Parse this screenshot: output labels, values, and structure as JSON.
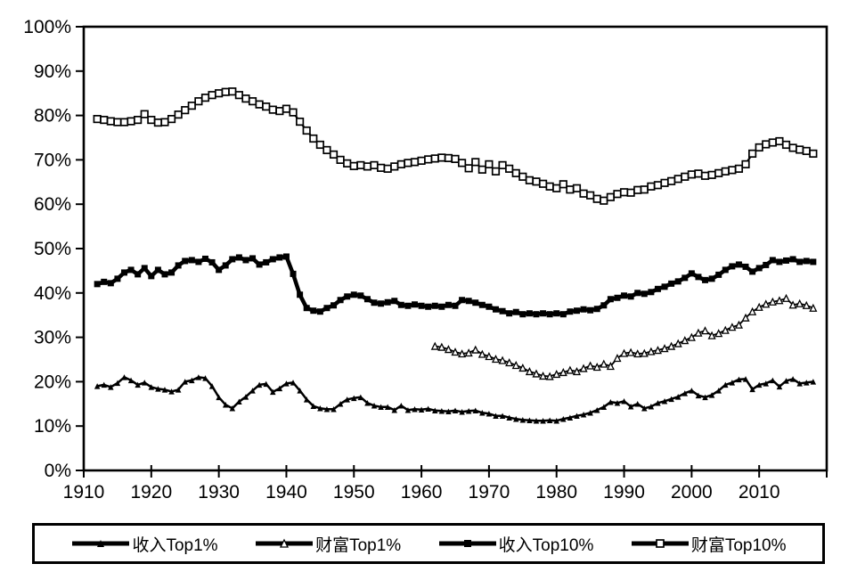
{
  "figure": {
    "background": "#ffffff",
    "line_color": "#000000"
  },
  "axes": {
    "y_tick_labels": [
      "100%",
      "90%",
      "80%",
      "70%",
      "60%",
      "50%",
      "40%",
      "30%",
      "20%",
      "10%",
      "0%"
    ],
    "y_tick_values": [
      100,
      90,
      80,
      70,
      60,
      50,
      40,
      30,
      20,
      10,
      0
    ],
    "x_tick_labels": [
      "1910",
      "1920",
      "1930",
      "1940",
      "1950",
      "1960",
      "1970",
      "1980",
      "1990",
      "2000",
      "2010"
    ],
    "x_tick_values": [
      1910,
      1920,
      1930,
      1940,
      1950,
      1960,
      1970,
      1980,
      1990,
      2000,
      2010
    ]
  },
  "legend": {
    "items": [
      "收入Top1%",
      "财富Top1%",
      "收入Top10%",
      "财富Top10%"
    ]
  },
  "chart_data": {
    "type": "line",
    "title": "",
    "xlabel": "",
    "ylabel": "",
    "xlim": [
      1910,
      2020
    ],
    "ylim": [
      0,
      100
    ],
    "grid": false,
    "legend_position": "bottom",
    "series": [
      {
        "name": "收入Top1%",
        "marker": "triangle-filled",
        "line_width": 2.5,
        "marker_size": 6.5,
        "start_year": 1912,
        "values": [
          19,
          19.3,
          18.8,
          19.7,
          21,
          20.3,
          19.3,
          19.8,
          18.8,
          18.4,
          18.2,
          17.8,
          18.2,
          20,
          20.3,
          21,
          20.8,
          19,
          16.5,
          14.8,
          14,
          15.5,
          16.6,
          18,
          19.3,
          19.5,
          17.7,
          18.5,
          19.6,
          19.8,
          18,
          16,
          14.5,
          14,
          13.8,
          13.8,
          15,
          16,
          16.3,
          16.5,
          15.2,
          14.6,
          14.3,
          14.3,
          13.6,
          14.6,
          13.6,
          13.8,
          13.7,
          13.9,
          13.5,
          13.4,
          13.3,
          13.5,
          13.2,
          13.4,
          13.5,
          13,
          12.8,
          12.3,
          12.3,
          11.9,
          11.6,
          11.4,
          11.3,
          11.2,
          11.2,
          11.3,
          11.2,
          11.6,
          11.9,
          12.3,
          12.6,
          13,
          13.6,
          14.3,
          15.4,
          15.2,
          15.6,
          14.4,
          15,
          14,
          14.4,
          15.2,
          15.6,
          16.1,
          16.6,
          17.4,
          18,
          16.9,
          16.5,
          17,
          18,
          19.3,
          19.8,
          20.5,
          20.6,
          18.3,
          19.3,
          19.6,
          20.3,
          18.9,
          20.2,
          20.6,
          19.6,
          19.8,
          20
        ]
      },
      {
        "name": "财富Top1%",
        "marker": "triangle-open",
        "line_width": 1.8,
        "marker_size": 7,
        "start_year": 1962,
        "values": [
          28,
          27.8,
          27.3,
          26.7,
          26.3,
          26.5,
          27.2,
          26.2,
          25.7,
          25.1,
          24.8,
          24.3,
          23.7,
          23.1,
          22.3,
          21.8,
          21.3,
          21.2,
          21.7,
          22.1,
          22.6,
          22.3,
          23,
          23.6,
          23.3,
          24,
          23.5,
          25.3,
          26.4,
          26.6,
          26.3,
          26.4,
          26.8,
          27.1,
          27.5,
          28,
          28.6,
          29.3,
          30,
          31,
          31.5,
          30.4,
          30.9,
          31.6,
          32.3,
          32.8,
          34.4,
          35.8,
          36.8,
          37.5,
          38,
          38.3,
          38.8,
          37.3,
          37.6,
          37.2,
          36.6
        ]
      },
      {
        "name": "收入Top10%",
        "marker": "square-filled",
        "line_width": 4.5,
        "marker_size": 7,
        "start_year": 1912,
        "values": [
          42,
          42.5,
          42.2,
          43.2,
          44.6,
          45.2,
          44.2,
          45.6,
          43.8,
          45.2,
          44.2,
          44.6,
          46.2,
          47.2,
          47.4,
          47,
          47.7,
          46.9,
          45.2,
          46.2,
          47.6,
          48,
          47.4,
          47.8,
          46.4,
          46.9,
          47.6,
          48,
          48.2,
          44.3,
          39.6,
          36.6,
          36,
          35.8,
          36.6,
          37.2,
          38.4,
          39.2,
          39.6,
          39.4,
          38.6,
          37.8,
          37.6,
          37.9,
          38.2,
          37.3,
          37.1,
          37.4,
          37.1,
          36.9,
          37.1,
          36.9,
          37.3,
          37.1,
          38.4,
          38.2,
          37.8,
          37.3,
          36.9,
          36.3,
          35.9,
          35.4,
          35.7,
          35.2,
          35.4,
          35.2,
          35.4,
          35.2,
          35.4,
          35.2,
          35.8,
          36,
          36.3,
          36.1,
          36.4,
          37.2,
          38.6,
          38.9,
          39.4,
          39.2,
          40,
          39.8,
          40.2,
          40.9,
          41.4,
          42.1,
          42.6,
          43.4,
          44.4,
          43.6,
          42.9,
          43.2,
          44.1,
          45.2,
          46,
          46.4,
          45.9,
          44.8,
          45.6,
          46.3,
          47.4,
          47,
          47.3,
          47.6,
          47,
          47.2,
          47
        ]
      },
      {
        "name": "财富Top10%",
        "marker": "square-open",
        "line_width": 2.2,
        "marker_size": 7.5,
        "start_year": 1912,
        "values": [
          79.2,
          79,
          78.7,
          78.5,
          78.5,
          78.7,
          79,
          80.3,
          79,
          78.4,
          78.5,
          79.2,
          80.2,
          81.2,
          82.2,
          83.2,
          84,
          84.6,
          85,
          85.3,
          85.4,
          84.6,
          83.8,
          83.2,
          82.5,
          82,
          81.3,
          81,
          81.5,
          80.7,
          78.6,
          76.6,
          74.8,
          73.4,
          72.2,
          71.2,
          70,
          69.2,
          68.6,
          68.8,
          68.5,
          68.8,
          68.2,
          68,
          68.5,
          69,
          69.3,
          69.5,
          69.8,
          70.1,
          70.3,
          70.5,
          70.4,
          70.2,
          69.3,
          68.1,
          69.5,
          67.8,
          69,
          67.4,
          68.8,
          68,
          67,
          66.2,
          65.4,
          65.1,
          64.6,
          64,
          63.6,
          64.5,
          63.3,
          63.6,
          62.4,
          62,
          61.2,
          60.8,
          61.6,
          62.3,
          62.7,
          62.6,
          63.2,
          63.3,
          64,
          64.3,
          64.8,
          65.2,
          65.7,
          66.2,
          66.7,
          66.9,
          66.4,
          66.6,
          67,
          67.4,
          67.7,
          68,
          69,
          71.4,
          72.8,
          73.5,
          73.9,
          74.2,
          73.4,
          72.7,
          72.3,
          72,
          71.4
        ]
      }
    ]
  }
}
